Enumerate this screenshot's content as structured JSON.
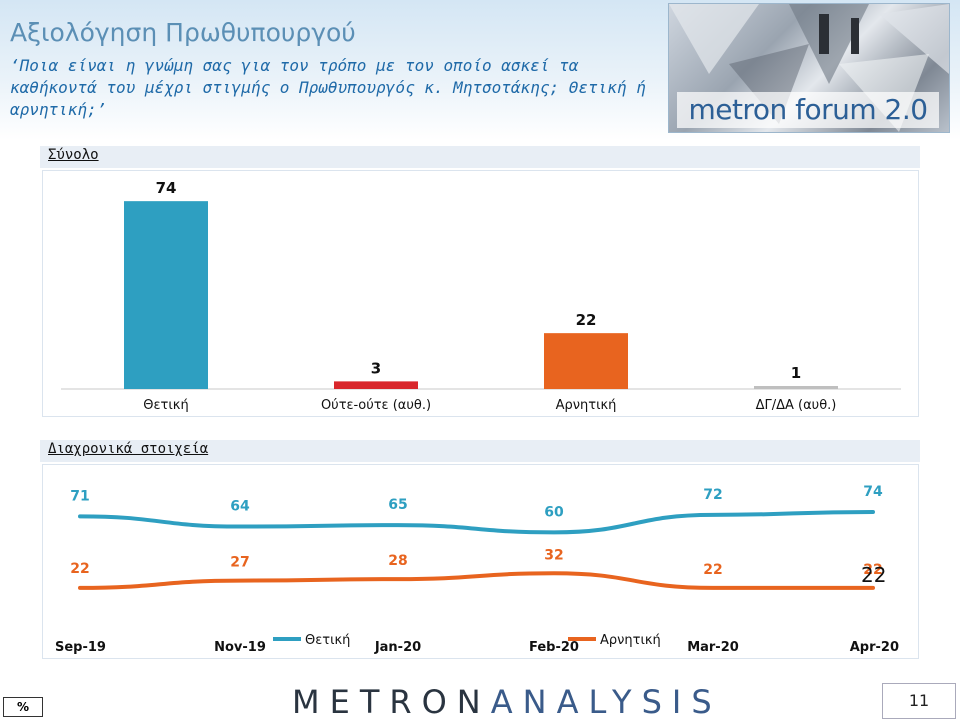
{
  "header": {
    "title": "Αξιολόγηση Πρωθυπουργού",
    "subtitle": "‘Ποια είναι η γνώμη σας για τον τρόπο με τον οποίο ασκεί τα καθήκοντά του μέχρι στιγμής ο Πρωθυπουργός κ. Μητσοτάκης; Θετική ή αρνητική;’",
    "brand_image_text": "metron forum 2.0"
  },
  "sections": {
    "total_label": "Σύνολο",
    "trend_label": "Διαχρονικά στοιχεία"
  },
  "chart_data": [
    {
      "type": "bar",
      "title": "",
      "categories": [
        "Θετική",
        "Ούτε-ούτε (αυθ.)",
        "Αρνητική",
        "ΔΓ/ΔΑ (αυθ.)"
      ],
      "values": [
        74,
        3,
        22,
        1
      ],
      "colors": [
        "#2e9fc1",
        "#d9262b",
        "#e8641f",
        "#bfbfbf"
      ],
      "ylim": [
        0,
        80
      ],
      "grid": false,
      "unit": "%"
    },
    {
      "type": "line",
      "title": "",
      "x": [
        "Sep-19",
        "Nov-19",
        "Jan-20",
        "Feb-20",
        "Mar-20",
        "Apr-20"
      ],
      "series": [
        {
          "name": "Θετική",
          "values": [
            71,
            64,
            65,
            60,
            72,
            74
          ],
          "color": "#2e9fc1"
        },
        {
          "name": "Αρνητική",
          "values": [
            22,
            27,
            28,
            32,
            22,
            22
          ],
          "color": "#e8641f"
        }
      ],
      "legend_position": "bottom",
      "grid": false,
      "unit": "%"
    }
  ],
  "footer": {
    "badge": "%",
    "brand_part1": "METRON",
    "brand_part2": "ANALYSIS",
    "page_number": "11"
  }
}
